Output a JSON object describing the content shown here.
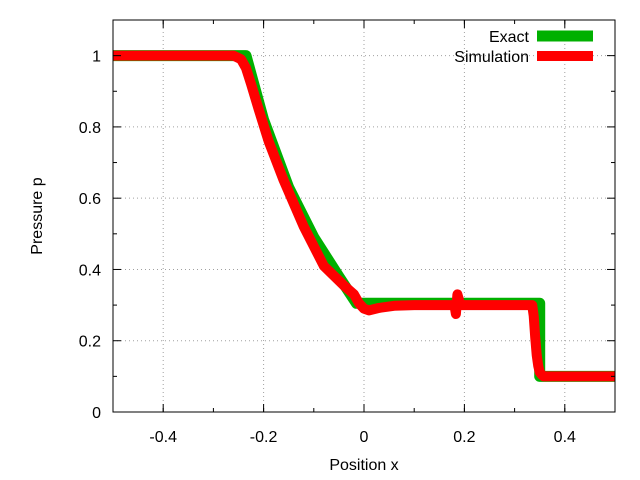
{
  "chart_data": {
    "type": "line",
    "title": "",
    "xlabel": "Position x",
    "ylabel": "Pressure p",
    "xlim": [
      -0.5,
      0.5
    ],
    "ylim": [
      0,
      1.1
    ],
    "xticks": [
      -0.4,
      -0.2,
      0,
      0.2,
      0.4
    ],
    "xtick_labels": [
      "-0.4",
      "-0.2",
      "0",
      "0.2",
      "0.4"
    ],
    "yticks": [
      0,
      0.2,
      0.4,
      0.6,
      0.8,
      1
    ],
    "ytick_labels": [
      "0",
      "0.2",
      "0.4",
      "0.6",
      "0.8",
      "1"
    ],
    "grid": true,
    "legend_position": "top-right",
    "series": [
      {
        "name": "Exact",
        "color": "#00b000",
        "x": [
          -0.5,
          -0.235,
          -0.2,
          -0.15,
          -0.1,
          -0.05,
          -0.015,
          0.0,
          0.1,
          0.2,
          0.3,
          0.35,
          0.35,
          0.4,
          0.5
        ],
        "y": [
          1.0,
          1.0,
          0.82,
          0.63,
          0.49,
          0.38,
          0.305,
          0.305,
          0.305,
          0.305,
          0.305,
          0.305,
          0.1,
          0.1,
          0.1
        ]
      },
      {
        "name": "Simulation",
        "color": "#ff0000",
        "x": [
          -0.5,
          -0.26,
          -0.245,
          -0.235,
          -0.225,
          -0.21,
          -0.19,
          -0.16,
          -0.12,
          -0.08,
          -0.04,
          -0.02,
          -0.01,
          0.0,
          0.01,
          0.03,
          0.06,
          0.1,
          0.15,
          0.18,
          0.183,
          0.186,
          0.19,
          0.193,
          0.196,
          0.2,
          0.25,
          0.3,
          0.335,
          0.338,
          0.341,
          0.344,
          0.347,
          0.35,
          0.354,
          0.358,
          0.365,
          0.4,
          0.5
        ],
        "y": [
          1.0,
          1.0,
          0.99,
          0.965,
          0.92,
          0.85,
          0.76,
          0.65,
          0.52,
          0.41,
          0.355,
          0.33,
          0.305,
          0.29,
          0.285,
          0.292,
          0.298,
          0.3,
          0.3,
          0.3,
          0.275,
          0.33,
          0.31,
          0.3,
          0.3,
          0.3,
          0.3,
          0.3,
          0.3,
          0.27,
          0.21,
          0.16,
          0.13,
          0.112,
          0.105,
          0.1,
          0.1,
          0.1,
          0.1
        ]
      }
    ]
  }
}
